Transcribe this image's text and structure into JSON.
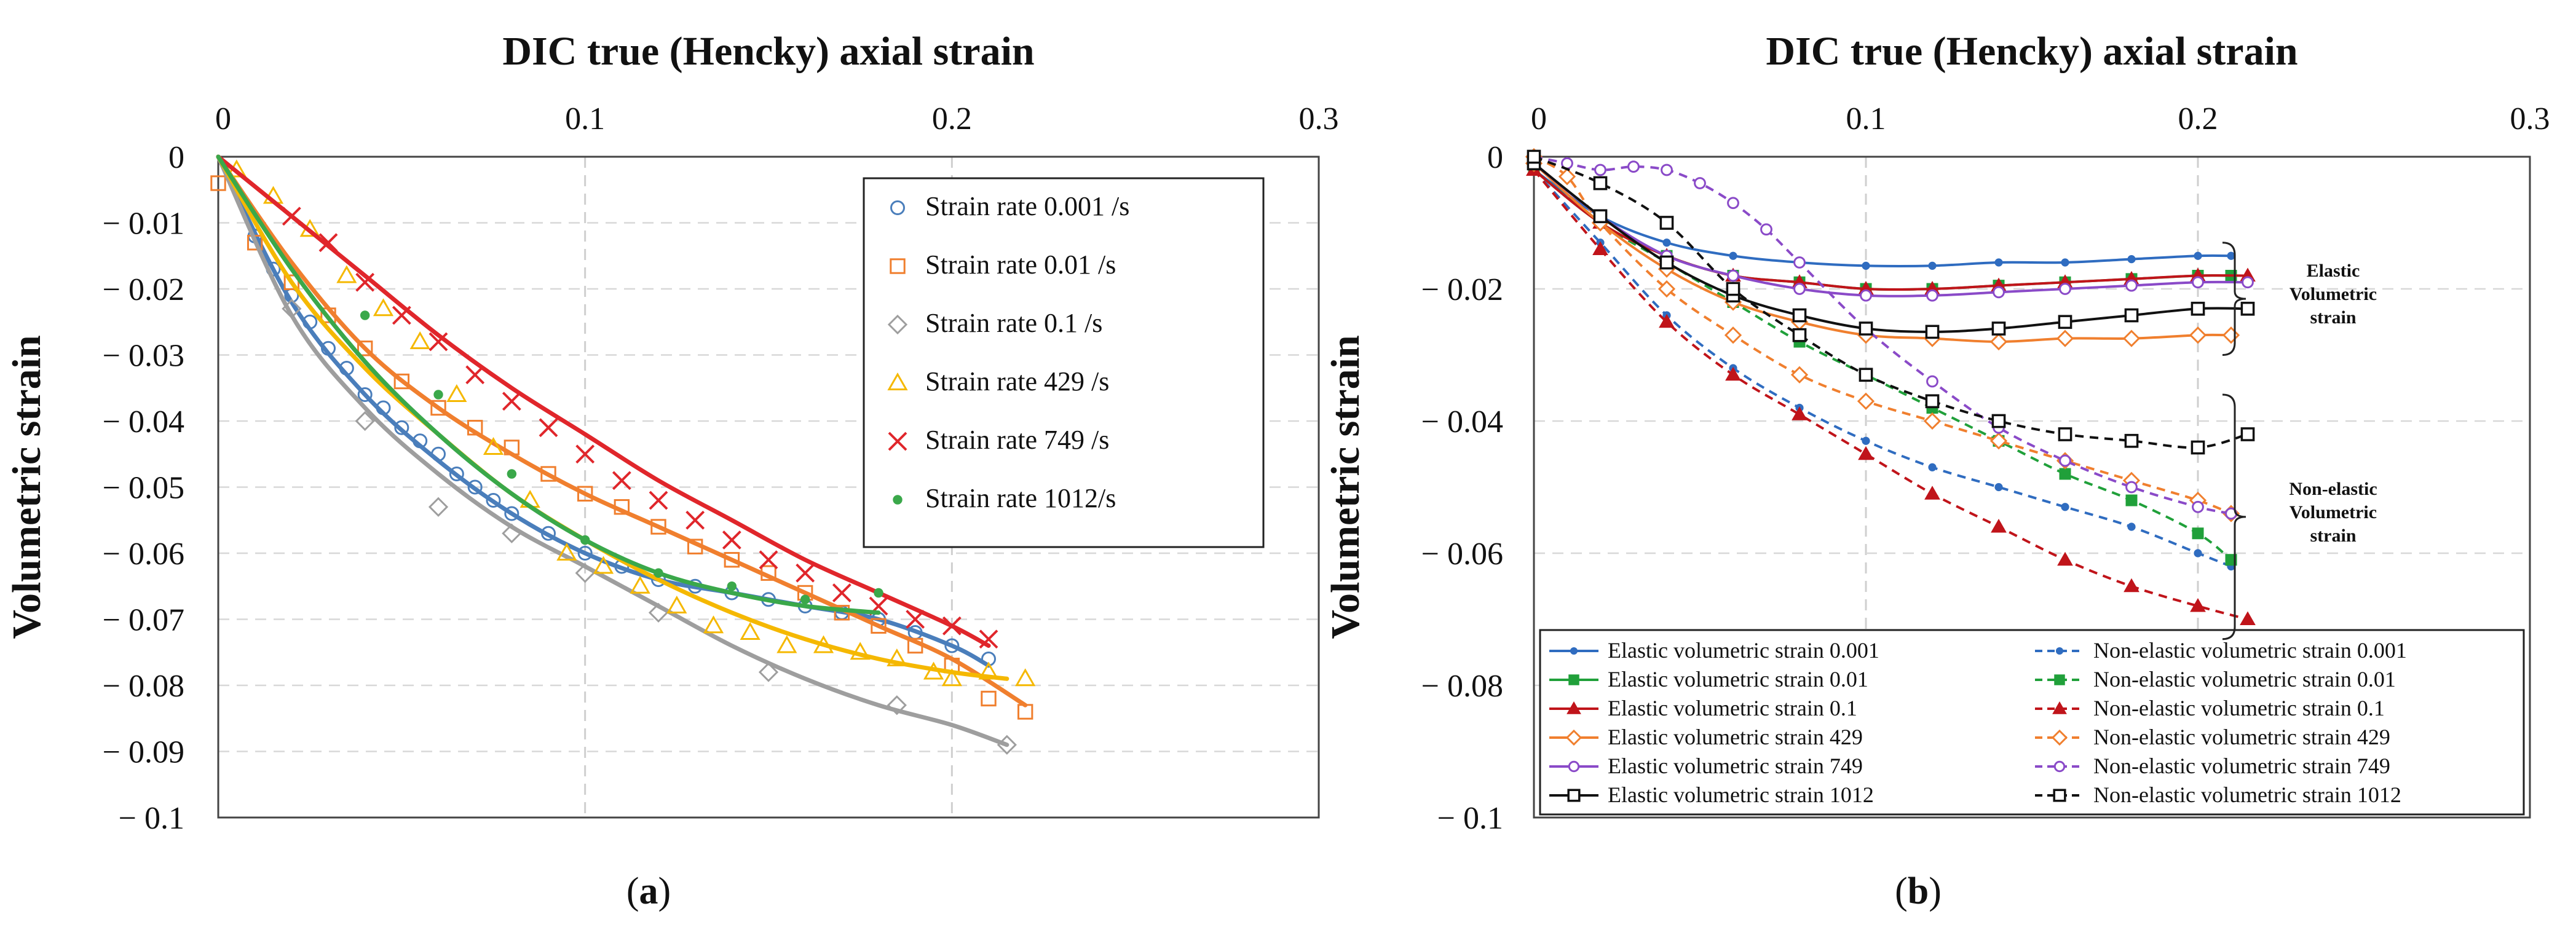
{
  "chart_data": [
    {
      "type": "scatter",
      "panel_label": "a",
      "title": "DIC true (Hencky) axial strain",
      "xlabel": "",
      "ylabel": "Volumetric strain",
      "xlim": [
        0,
        0.3
      ],
      "ylim": [
        -0.1,
        0
      ],
      "xticks": [
        0,
        0.1,
        0.2,
        0.3
      ],
      "xtick_labels": [
        "0",
        "0.1",
        "0.2",
        "0.3"
      ],
      "yticks": [
        0,
        -0.01,
        -0.02,
        -0.03,
        -0.04,
        -0.05,
        -0.06,
        -0.07,
        -0.08,
        -0.09,
        -0.1
      ],
      "ytick_labels": [
        "0",
        "− 0.01",
        "− 0.02",
        "− 0.03",
        "− 0.04",
        "− 0.05",
        "− 0.06",
        "− 0.07",
        "− 0.08",
        "− 0.09",
        "− 0.1"
      ],
      "legend_position": "top-right",
      "series": [
        {
          "name": "Strain rate 0.001 /s",
          "color": "#4a7ebb",
          "marker": "circle",
          "x": [
            0.01,
            0.015,
            0.02,
            0.025,
            0.03,
            0.035,
            0.04,
            0.045,
            0.05,
            0.055,
            0.06,
            0.065,
            0.07,
            0.075,
            0.08,
            0.09,
            0.1,
            0.11,
            0.12,
            0.13,
            0.14,
            0.15,
            0.16,
            0.17,
            0.18,
            0.19,
            0.2,
            0.21
          ],
          "y": [
            -0.012,
            -0.017,
            -0.021,
            -0.025,
            -0.029,
            -0.032,
            -0.036,
            -0.038,
            -0.041,
            -0.043,
            -0.045,
            -0.048,
            -0.05,
            -0.052,
            -0.054,
            -0.057,
            -0.06,
            -0.062,
            -0.064,
            -0.065,
            -0.066,
            -0.067,
            -0.068,
            -0.069,
            -0.07,
            -0.072,
            -0.074,
            -0.076
          ],
          "fit_x": [
            0,
            0.02,
            0.04,
            0.06,
            0.08,
            0.1,
            0.12,
            0.14,
            0.16,
            0.18,
            0.2,
            0.21
          ],
          "fit_y": [
            0,
            -0.022,
            -0.036,
            -0.046,
            -0.054,
            -0.06,
            -0.064,
            -0.066,
            -0.068,
            -0.07,
            -0.074,
            -0.077
          ]
        },
        {
          "name": "Strain rate 0.01 /s",
          "color": "#f07f2e",
          "marker": "square",
          "x": [
            0,
            0.01,
            0.02,
            0.03,
            0.04,
            0.05,
            0.06,
            0.07,
            0.08,
            0.09,
            0.1,
            0.11,
            0.12,
            0.13,
            0.14,
            0.15,
            0.16,
            0.17,
            0.18,
            0.19,
            0.2,
            0.21,
            0.22
          ],
          "y": [
            -0.004,
            -0.013,
            -0.019,
            -0.024,
            -0.029,
            -0.034,
            -0.038,
            -0.041,
            -0.044,
            -0.048,
            -0.051,
            -0.053,
            -0.056,
            -0.059,
            -0.061,
            -0.063,
            -0.066,
            -0.069,
            -0.071,
            -0.074,
            -0.077,
            -0.082,
            -0.084
          ],
          "fit_x": [
            0,
            0.02,
            0.04,
            0.06,
            0.08,
            0.1,
            0.12,
            0.14,
            0.16,
            0.18,
            0.2,
            0.22
          ],
          "fit_y": [
            0,
            -0.016,
            -0.029,
            -0.038,
            -0.045,
            -0.051,
            -0.056,
            -0.061,
            -0.066,
            -0.071,
            -0.076,
            -0.083
          ]
        },
        {
          "name": "Strain rate 0.1 /s",
          "color": "#9e9e9e",
          "marker": "diamond",
          "x": [
            0.02,
            0.04,
            0.06,
            0.08,
            0.1,
            0.12,
            0.15,
            0.185,
            0.215
          ],
          "y": [
            -0.023,
            -0.04,
            -0.053,
            -0.057,
            -0.063,
            -0.069,
            -0.078,
            -0.083,
            -0.089
          ],
          "fit_x": [
            0,
            0.02,
            0.04,
            0.06,
            0.08,
            0.1,
            0.12,
            0.14,
            0.16,
            0.18,
            0.2,
            0.215
          ],
          "fit_y": [
            0,
            -0.024,
            -0.038,
            -0.048,
            -0.056,
            -0.062,
            -0.068,
            -0.074,
            -0.079,
            -0.083,
            -0.086,
            -0.089
          ]
        },
        {
          "name": "Strain rate 429 /s",
          "color": "#f5b800",
          "marker": "triangle",
          "x": [
            0.005,
            0.015,
            0.025,
            0.035,
            0.045,
            0.055,
            0.065,
            0.075,
            0.085,
            0.095,
            0.105,
            0.115,
            0.125,
            0.135,
            0.145,
            0.155,
            0.165,
            0.175,
            0.185,
            0.195,
            0.2,
            0.21,
            0.22
          ],
          "y": [
            -0.002,
            -0.006,
            -0.011,
            -0.018,
            -0.023,
            -0.028,
            -0.036,
            -0.044,
            -0.052,
            -0.06,
            -0.062,
            -0.065,
            -0.068,
            -0.071,
            -0.072,
            -0.074,
            -0.074,
            -0.075,
            -0.076,
            -0.078,
            -0.079,
            -0.078,
            -0.079
          ],
          "fit_x": [
            0,
            0.02,
            0.04,
            0.06,
            0.08,
            0.1,
            0.12,
            0.14,
            0.16,
            0.18,
            0.2,
            0.215
          ],
          "fit_y": [
            0,
            -0.019,
            -0.032,
            -0.042,
            -0.051,
            -0.058,
            -0.064,
            -0.069,
            -0.073,
            -0.076,
            -0.078,
            -0.079
          ]
        },
        {
          "name": "Strain rate 749 /s",
          "color": "#e0262b",
          "marker": "x",
          "x": [
            0.02,
            0.03,
            0.04,
            0.05,
            0.06,
            0.07,
            0.08,
            0.09,
            0.1,
            0.11,
            0.12,
            0.13,
            0.14,
            0.15,
            0.16,
            0.17,
            0.18,
            0.19,
            0.2,
            0.21
          ],
          "y": [
            -0.009,
            -0.013,
            -0.019,
            -0.024,
            -0.028,
            -0.033,
            -0.037,
            -0.041,
            -0.045,
            -0.049,
            -0.052,
            -0.055,
            -0.058,
            -0.061,
            -0.063,
            -0.066,
            -0.068,
            -0.07,
            -0.071,
            -0.073
          ],
          "fit_x": [
            0,
            0.02,
            0.04,
            0.06,
            0.08,
            0.1,
            0.12,
            0.14,
            0.16,
            0.18,
            0.2,
            0.21
          ],
          "fit_y": [
            0,
            -0.009,
            -0.018,
            -0.027,
            -0.035,
            -0.042,
            -0.049,
            -0.055,
            -0.061,
            -0.066,
            -0.071,
            -0.074
          ]
        },
        {
          "name": "Strain rate 1012/s",
          "color": "#3aa84a",
          "marker": "dot",
          "x": [
            0.04,
            0.06,
            0.08,
            0.1,
            0.12,
            0.14,
            0.16,
            0.18
          ],
          "y": [
            -0.024,
            -0.036,
            -0.048,
            -0.058,
            -0.063,
            -0.065,
            -0.067,
            -0.066
          ],
          "fit_x": [
            0,
            0.02,
            0.04,
            0.06,
            0.08,
            0.1,
            0.12,
            0.14,
            0.16,
            0.18
          ],
          "fit_y": [
            0,
            -0.017,
            -0.031,
            -0.042,
            -0.051,
            -0.058,
            -0.063,
            -0.066,
            -0.068,
            -0.069
          ]
        }
      ]
    },
    {
      "type": "line",
      "panel_label": "b",
      "title": "DIC true (Hencky) axial strain",
      "xlabel": "",
      "ylabel": "Volumetric strain",
      "xlim": [
        0,
        0.3
      ],
      "ylim": [
        -0.1,
        0
      ],
      "xticks": [
        0,
        0.1,
        0.2,
        0.3
      ],
      "xtick_labels": [
        "0",
        "0.1",
        "0.2",
        "0.3"
      ],
      "yticks": [
        0,
        -0.02,
        -0.04,
        -0.06,
        -0.08,
        -0.1
      ],
      "ytick_labels": [
        "0",
        "− 0.02",
        "− 0.04",
        "− 0.06",
        "− 0.08",
        "− 0.1"
      ],
      "legend_position": "bottom",
      "annotations": [
        {
          "lines": [
            "Elastic",
            "Volumetric",
            "strain"
          ]
        },
        {
          "lines": [
            "Non-elastic",
            "Volumetric",
            "strain"
          ]
        }
      ],
      "series": [
        {
          "name": "Elastic volumetric strain 0.001",
          "color": "#2f6cc0",
          "marker": "dot",
          "dash": false,
          "x": [
            0,
            0.02,
            0.04,
            0.06,
            0.08,
            0.1,
            0.12,
            0.14,
            0.16,
            0.18,
            0.2,
            0.21
          ],
          "y": [
            -0.002,
            -0.009,
            -0.013,
            -0.015,
            -0.016,
            -0.0165,
            -0.0165,
            -0.016,
            -0.016,
            -0.0155,
            -0.015,
            -0.015
          ]
        },
        {
          "name": "Non-elastic volumetric strain 0.001",
          "color": "#2f6cc0",
          "marker": "dot",
          "dash": true,
          "x": [
            0,
            0.02,
            0.04,
            0.06,
            0.08,
            0.1,
            0.12,
            0.14,
            0.16,
            0.18,
            0.2,
            0.21
          ],
          "y": [
            -0.002,
            -0.013,
            -0.024,
            -0.032,
            -0.038,
            -0.043,
            -0.047,
            -0.05,
            -0.053,
            -0.056,
            -0.06,
            -0.062
          ]
        },
        {
          "name": "Elastic volumetric strain 0.01",
          "color": "#20a03a",
          "marker": "square-filled",
          "dash": false,
          "x": [
            0,
            0.02,
            0.04,
            0.06,
            0.08,
            0.1,
            0.12,
            0.14,
            0.16,
            0.18,
            0.2,
            0.21
          ],
          "y": [
            -0.002,
            -0.01,
            -0.015,
            -0.018,
            -0.019,
            -0.02,
            -0.02,
            -0.0195,
            -0.019,
            -0.0185,
            -0.018,
            -0.018
          ]
        },
        {
          "name": "Non-elastic volumetric strain 0.01",
          "color": "#20a03a",
          "marker": "square-filled",
          "dash": true,
          "x": [
            0,
            0.02,
            0.04,
            0.06,
            0.08,
            0.1,
            0.12,
            0.14,
            0.16,
            0.18,
            0.2,
            0.21
          ],
          "y": [
            -0.002,
            -0.01,
            -0.016,
            -0.022,
            -0.028,
            -0.033,
            -0.038,
            -0.043,
            -0.048,
            -0.052,
            -0.057,
            -0.061
          ]
        },
        {
          "name": "Elastic volumetric strain 0.1",
          "color": "#c0141a",
          "marker": "triangle-filled",
          "dash": false,
          "x": [
            0,
            0.02,
            0.04,
            0.06,
            0.08,
            0.1,
            0.12,
            0.14,
            0.16,
            0.18,
            0.2,
            0.215
          ],
          "y": [
            -0.002,
            -0.01,
            -0.015,
            -0.018,
            -0.019,
            -0.02,
            -0.02,
            -0.0195,
            -0.019,
            -0.0185,
            -0.018,
            -0.018
          ]
        },
        {
          "name": "Non-elastic volumetric strain 0.1",
          "color": "#c0141a",
          "marker": "triangle-filled",
          "dash": true,
          "x": [
            0,
            0.02,
            0.04,
            0.06,
            0.08,
            0.1,
            0.12,
            0.14,
            0.16,
            0.18,
            0.2,
            0.215
          ],
          "y": [
            -0.002,
            -0.014,
            -0.025,
            -0.033,
            -0.039,
            -0.045,
            -0.051,
            -0.056,
            -0.061,
            -0.065,
            -0.068,
            -0.07
          ]
        },
        {
          "name": "Elastic volumetric strain 429",
          "color": "#f07f2e",
          "marker": "diamond-open",
          "dash": false,
          "x": [
            0,
            0.02,
            0.04,
            0.06,
            0.08,
            0.1,
            0.12,
            0.14,
            0.16,
            0.18,
            0.2,
            0.21
          ],
          "y": [
            -0.001,
            -0.01,
            -0.017,
            -0.022,
            -0.025,
            -0.027,
            -0.0275,
            -0.028,
            -0.0275,
            -0.0275,
            -0.027,
            -0.027
          ]
        },
        {
          "name": "Non-elastic volumetric strain 429",
          "color": "#f07f2e",
          "marker": "diamond-open",
          "dash": true,
          "x": [
            0,
            0.01,
            0.02,
            0.04,
            0.06,
            0.08,
            0.1,
            0.12,
            0.14,
            0.16,
            0.18,
            0.2,
            0.21
          ],
          "y": [
            0,
            -0.003,
            -0.01,
            -0.02,
            -0.027,
            -0.033,
            -0.037,
            -0.04,
            -0.043,
            -0.046,
            -0.049,
            -0.052,
            -0.054
          ]
        },
        {
          "name": "Elastic volumetric strain 749",
          "color": "#8a4ac8",
          "marker": "circle-open",
          "dash": false,
          "x": [
            0,
            0.02,
            0.04,
            0.06,
            0.08,
            0.1,
            0.12,
            0.14,
            0.16,
            0.18,
            0.2,
            0.215
          ],
          "y": [
            -0.001,
            -0.009,
            -0.015,
            -0.018,
            -0.02,
            -0.021,
            -0.021,
            -0.0205,
            -0.02,
            -0.0195,
            -0.019,
            -0.019
          ]
        },
        {
          "name": "Non-elastic volumetric strain 749",
          "color": "#8a4ac8",
          "marker": "circle-open",
          "dash": true,
          "x": [
            0,
            0.01,
            0.02,
            0.03,
            0.04,
            0.05,
            0.06,
            0.07,
            0.08,
            0.1,
            0.12,
            0.14,
            0.16,
            0.18,
            0.2,
            0.21
          ],
          "y": [
            0,
            -0.001,
            -0.002,
            -0.0015,
            -0.002,
            -0.004,
            -0.007,
            -0.011,
            -0.016,
            -0.026,
            -0.034,
            -0.041,
            -0.046,
            -0.05,
            -0.053,
            -0.054
          ]
        },
        {
          "name": "Elastic volumetric strain 1012",
          "color": "#111111",
          "marker": "square-open",
          "dash": false,
          "x": [
            0,
            0.02,
            0.04,
            0.06,
            0.08,
            0.1,
            0.12,
            0.14,
            0.16,
            0.18,
            0.2,
            0.215
          ],
          "y": [
            -0.001,
            -0.009,
            -0.016,
            -0.021,
            -0.024,
            -0.026,
            -0.0265,
            -0.026,
            -0.025,
            -0.024,
            -0.023,
            -0.023
          ]
        },
        {
          "name": "Non-elastic volumetric strain 1012",
          "color": "#111111",
          "marker": "square-open",
          "dash": true,
          "x": [
            0,
            0.02,
            0.04,
            0.06,
            0.08,
            0.1,
            0.12,
            0.14,
            0.16,
            0.18,
            0.2,
            0.215
          ],
          "y": [
            0,
            -0.004,
            -0.01,
            -0.02,
            -0.027,
            -0.033,
            -0.037,
            -0.04,
            -0.042,
            -0.043,
            -0.044,
            -0.042
          ]
        }
      ]
    }
  ]
}
